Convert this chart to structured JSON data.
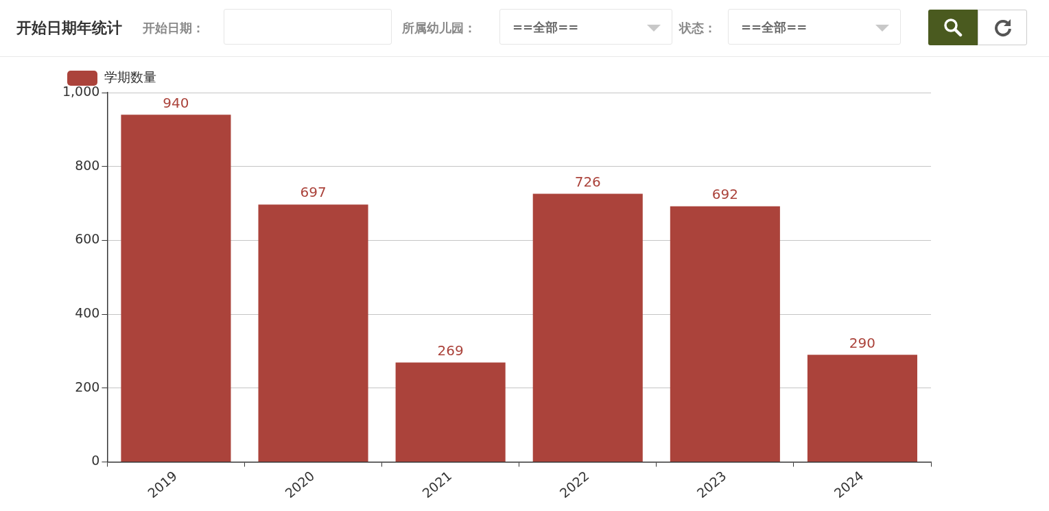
{
  "chart_data": {
    "type": "bar",
    "title": "开始日期年统计",
    "annotations": [
      "开始日期：",
      "所属幼儿园：",
      "==全部==",
      "状态：",
      "==全部=="
    ],
    "categories": [
      "2019",
      "2020",
      "2021",
      "2022",
      "2023",
      "2024"
    ],
    "series": [
      {
        "name": "学期数量",
        "color": "#ab433b",
        "values": [
          940,
          697,
          269,
          726,
          692,
          290
        ]
      }
    ],
    "ylim": [
      0,
      1000
    ],
    "yticks": [
      0,
      200,
      400,
      600,
      800,
      {
        "value": 1000,
        "label": "1,000"
      }
    ],
    "grid": "y",
    "legend": "top left",
    "data_labels": true
  }
}
